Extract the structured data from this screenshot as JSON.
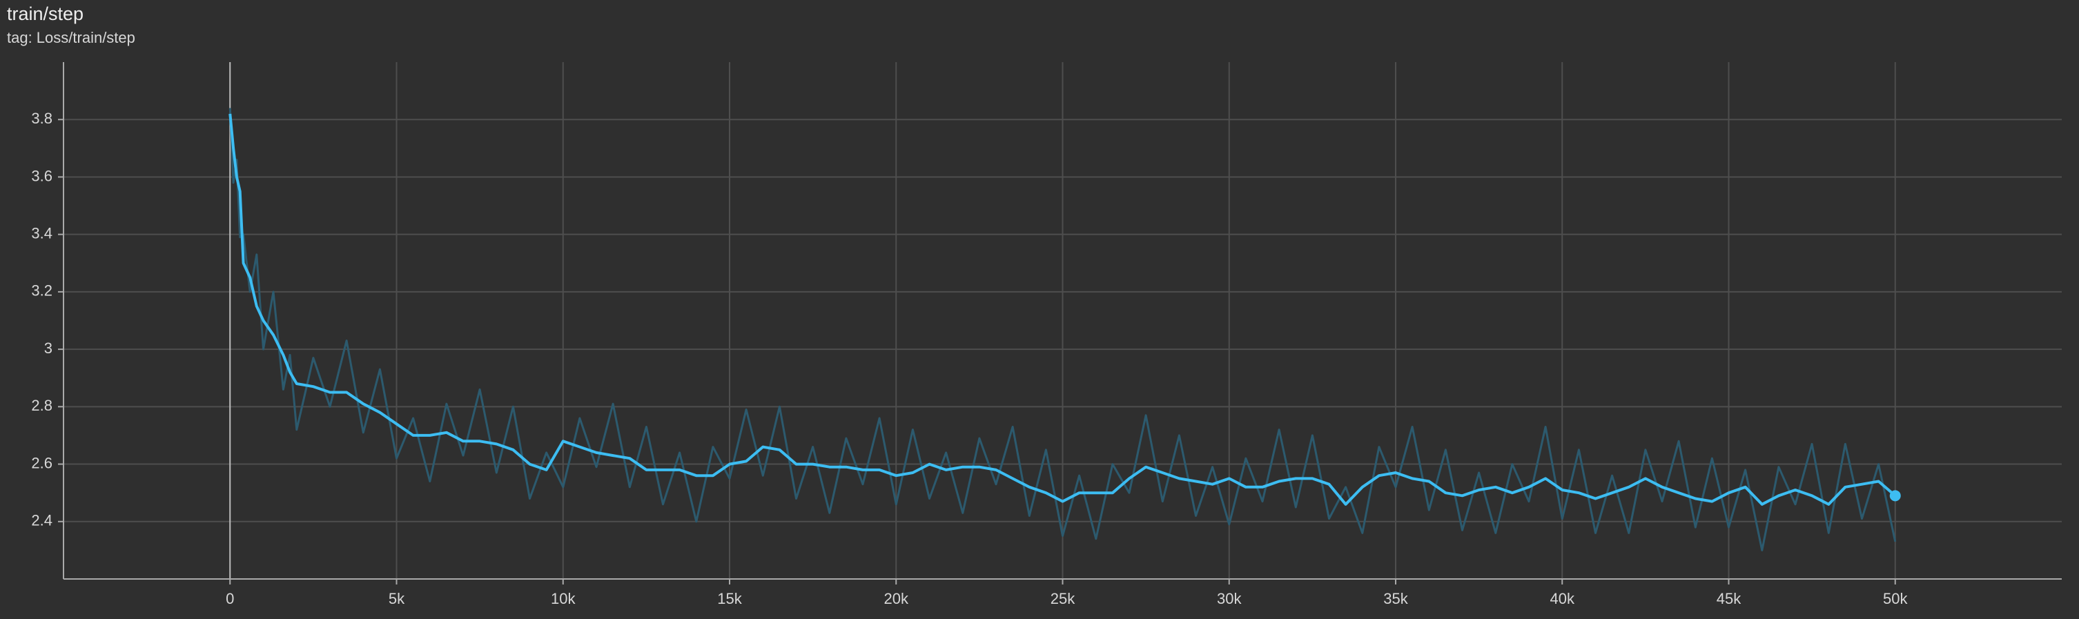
{
  "chart_data": {
    "type": "line",
    "title": "train/step",
    "subtitle": "tag: Loss/train/step",
    "x": [
      0,
      100,
      200,
      300,
      400,
      600,
      800,
      1000,
      1300,
      1600,
      1800,
      2000,
      2500,
      3000,
      3500,
      4000,
      4500,
      5000,
      5500,
      6000,
      6500,
      7000,
      7500,
      8000,
      8500,
      9000,
      9500,
      10000,
      10500,
      11000,
      11500,
      12000,
      12500,
      13000,
      13500,
      14000,
      14500,
      15000,
      15500,
      16000,
      16500,
      17000,
      17500,
      18000,
      18500,
      19000,
      19500,
      20000,
      20500,
      21000,
      21500,
      22000,
      22500,
      23000,
      23500,
      24000,
      24500,
      25000,
      25500,
      26000,
      26500,
      27000,
      27500,
      28000,
      28500,
      29000,
      29500,
      30000,
      30500,
      31000,
      31500,
      32000,
      32500,
      33000,
      33500,
      34000,
      34500,
      35000,
      35500,
      36000,
      36500,
      37000,
      37500,
      38000,
      38500,
      39000,
      39500,
      40000,
      40500,
      41000,
      41500,
      42000,
      42500,
      43000,
      43500,
      44000,
      44500,
      45000,
      45500,
      46000,
      46500,
      47000,
      47500,
      48000,
      48500,
      49000,
      49500,
      50000
    ],
    "series": [
      {
        "color": "#2c5a6e",
        "values": [
          3.84,
          3.58,
          3.66,
          3.39,
          3.4,
          3.2,
          3.33,
          3.0,
          3.2,
          2.86,
          2.98,
          2.72,
          2.97,
          2.8,
          3.03,
          2.71,
          2.93,
          2.62,
          2.76,
          2.54,
          2.81,
          2.63,
          2.86,
          2.57,
          2.8,
          2.48,
          2.64,
          2.52,
          2.76,
          2.59,
          2.81,
          2.52,
          2.73,
          2.46,
          2.64,
          2.4,
          2.66,
          2.55,
          2.79,
          2.56,
          2.8,
          2.48,
          2.66,
          2.43,
          2.69,
          2.53,
          2.76,
          2.46,
          2.72,
          2.48,
          2.64,
          2.43,
          2.69,
          2.53,
          2.73,
          2.42,
          2.65,
          2.35,
          2.56,
          2.34,
          2.6,
          2.5,
          2.77,
          2.47,
          2.7,
          2.42,
          2.59,
          2.39,
          2.62,
          2.47,
          2.72,
          2.45,
          2.7,
          2.41,
          2.52,
          2.36,
          2.66,
          2.52,
          2.73,
          2.44,
          2.65,
          2.37,
          2.57,
          2.36,
          2.6,
          2.47,
          2.73,
          2.41,
          2.65,
          2.36,
          2.56,
          2.36,
          2.65,
          2.47,
          2.68,
          2.38,
          2.62,
          2.38,
          2.58,
          2.3,
          2.59,
          2.46,
          2.67,
          2.36,
          2.67,
          2.41,
          2.6,
          2.33
        ]
      },
      {
        "color": "#3dbdf2",
        "values": [
          3.82,
          3.7,
          3.6,
          3.55,
          3.3,
          3.25,
          3.15,
          3.1,
          3.05,
          2.98,
          2.92,
          2.88,
          2.87,
          2.85,
          2.85,
          2.81,
          2.78,
          2.74,
          2.7,
          2.7,
          2.71,
          2.68,
          2.68,
          2.67,
          2.65,
          2.6,
          2.58,
          2.68,
          2.66,
          2.64,
          2.63,
          2.62,
          2.58,
          2.58,
          2.58,
          2.56,
          2.56,
          2.6,
          2.61,
          2.66,
          2.65,
          2.6,
          2.6,
          2.59,
          2.59,
          2.58,
          2.58,
          2.56,
          2.57,
          2.6,
          2.58,
          2.59,
          2.59,
          2.58,
          2.55,
          2.52,
          2.5,
          2.47,
          2.5,
          2.5,
          2.5,
          2.55,
          2.59,
          2.57,
          2.55,
          2.54,
          2.53,
          2.55,
          2.52,
          2.52,
          2.54,
          2.55,
          2.55,
          2.53,
          2.46,
          2.52,
          2.56,
          2.57,
          2.55,
          2.54,
          2.5,
          2.49,
          2.51,
          2.52,
          2.5,
          2.52,
          2.55,
          2.51,
          2.5,
          2.48,
          2.5,
          2.52,
          2.55,
          2.52,
          2.5,
          2.48,
          2.47,
          2.5,
          2.52,
          2.46,
          2.49,
          2.51,
          2.49,
          2.46,
          2.52,
          2.53,
          2.54,
          2.49
        ]
      }
    ],
    "xlim": [
      -5000,
      55000
    ],
    "ylim": [
      2.2,
      4.0
    ],
    "xticks": [
      0,
      {
        "value": 5000,
        "label": "5k"
      },
      {
        "value": 10000,
        "label": "10k"
      },
      {
        "value": 15000,
        "label": "15k"
      },
      {
        "value": 20000,
        "label": "20k"
      },
      {
        "value": 25000,
        "label": "25k"
      },
      {
        "value": 30000,
        "label": "30k"
      },
      {
        "value": 35000,
        "label": "35k"
      },
      {
        "value": 40000,
        "label": "40k"
      },
      {
        "value": 45000,
        "label": "45k"
      },
      {
        "value": 50000,
        "label": "50k"
      }
    ],
    "yticks": [
      2.4,
      2.6,
      2.8,
      3,
      3.2,
      3.4,
      3.6,
      3.8
    ],
    "grid": true
  }
}
